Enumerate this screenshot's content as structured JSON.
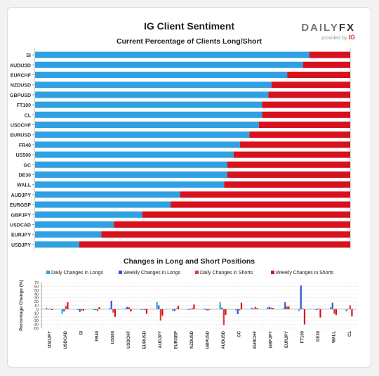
{
  "header": {
    "title": "IG Client Sentiment",
    "logo_brand_prefix": "DAILY",
    "logo_brand_suffix": "FX",
    "logo_provided_by": "provided by",
    "logo_ig": "IG"
  },
  "colors": {
    "long": "#2fa1e3",
    "short": "#d7111e",
    "weekly_long": "#2f55d3",
    "daily_short": "#e13a3a"
  },
  "chart_data": [
    {
      "type": "bar",
      "orientation": "horizontal",
      "stacked": true,
      "title": "Current Percentage of Clients Long/Short",
      "categories": [
        "SI",
        "AUDUSD",
        "EURCHF",
        "NZDUSD",
        "GBPUSD",
        "FT100",
        "CL",
        "USDCHF",
        "EURUSD",
        "FR40",
        "US500",
        "GC",
        "DE30",
        "WALL",
        "AUDJPY",
        "EURGBP",
        "GBPJPY",
        "USDCAD",
        "EURJPY",
        "USDJPY"
      ],
      "series": [
        {
          "values": [
            87,
            85,
            80,
            75,
            74,
            72,
            72,
            71,
            68,
            65,
            63,
            61,
            61,
            60,
            46,
            43,
            34,
            25,
            21,
            14
          ]
        },
        {
          "values": [
            13,
            15,
            20,
            25,
            26,
            28,
            28,
            29,
            32,
            35,
            37,
            39,
            39,
            40,
            54,
            57,
            66,
            75,
            79,
            86
          ]
        }
      ],
      "xlim": [
        0,
        100
      ]
    },
    {
      "type": "bar",
      "title": "Changes in Long and Short Positions",
      "ylabel": "Percentage Change (%)",
      "ylim": [
        -50,
        70
      ],
      "yticks": [
        70,
        60,
        50,
        40,
        30,
        20,
        10,
        0,
        -10,
        -20,
        -30,
        -40,
        -50
      ],
      "legend": "top",
      "categories": [
        "USDJPY",
        "USDCAD",
        "SI",
        "FR40",
        "US500",
        "USDCHF",
        "EURUSD",
        "AUDJPY",
        "EURGBP",
        "NZDUSD",
        "GBPUSD",
        "AUDUSD",
        "GC",
        "EURCHF",
        "GBPJPY",
        "EURJPY",
        "FT100",
        "DE30",
        "WALL",
        "CL"
      ],
      "series": [
        {
          "name": "Daily Changes in Longs",
          "values": [
            4,
            -12,
            -2,
            -2,
            3,
            2,
            -2,
            19,
            -4,
            -2,
            2,
            18,
            -3,
            4,
            5,
            2,
            -5,
            -1,
            5,
            -6
          ]
        },
        {
          "name": "Weekly Changes in Longs",
          "values": [
            -1,
            -6,
            -7,
            -2,
            22,
            6,
            -1,
            10,
            -5,
            -1,
            -2,
            4,
            -13,
            2,
            6,
            18,
            62,
            -2,
            17,
            1
          ]
        },
        {
          "name": "Daily Changes in Shorts",
          "values": [
            1,
            8,
            -3,
            -5,
            -9,
            5,
            -2,
            -30,
            2,
            3,
            -4,
            -42,
            -3,
            6,
            4,
            7,
            2,
            2,
            -12,
            10
          ]
        },
        {
          "name": "Weekly Changes in Shorts",
          "values": [
            -2,
            18,
            -4,
            5,
            -20,
            -6,
            -12,
            -17,
            9,
            12,
            0,
            -15,
            17,
            3,
            3,
            7,
            -40,
            -22,
            -15,
            -19
          ]
        }
      ]
    }
  ]
}
